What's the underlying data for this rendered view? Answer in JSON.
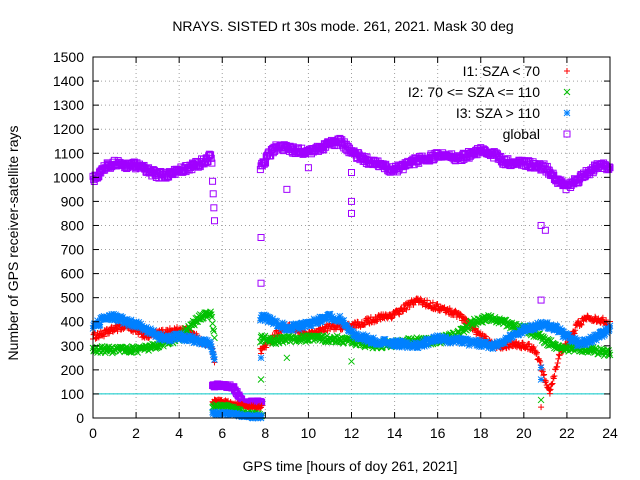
{
  "chart_data": {
    "type": "scatter",
    "title": "NRAYS. SISTED rt 30s mode. 261, 2021. Mask 30 deg",
    "xlabel": "GPS time [hours of doy 261, 2021]",
    "ylabel": "Number of GPS receiver-satellite rays",
    "xlim": [
      0,
      24
    ],
    "ylim": [
      0,
      1500
    ],
    "xticks": [
      0,
      2,
      4,
      6,
      8,
      10,
      12,
      14,
      16,
      18,
      20,
      22,
      24
    ],
    "yticks": [
      0,
      100,
      200,
      300,
      400,
      500,
      600,
      700,
      800,
      900,
      1000,
      1100,
      1200,
      1300,
      1400,
      1500
    ],
    "grid": true,
    "legend_position": "top-right",
    "threshold_line": {
      "y": 100,
      "color": "#00c8c8"
    },
    "series": [
      {
        "name": "I1: SZA < 70",
        "marker": "plus",
        "color": "#ff0000",
        "x": [
          0,
          0.5,
          1,
          1.5,
          2,
          2.5,
          3,
          3.5,
          4,
          4.5,
          5,
          5.5,
          6,
          7.8,
          8.5,
          9,
          10,
          11,
          12,
          13,
          14,
          15,
          16,
          17,
          18,
          18.5,
          19,
          19.5,
          20,
          20.5,
          21.2,
          21.7,
          22,
          22.5,
          23,
          23.5,
          24
        ],
        "values": [
          340,
          350,
          370,
          385,
          360,
          340,
          350,
          360,
          365,
          360,
          320,
          300,
          70,
          280,
          350,
          380,
          345,
          380,
          380,
          410,
          430,
          490,
          460,
          430,
          340,
          310,
          300,
          310,
          300,
          290,
          110,
          280,
          300,
          390,
          420,
          410,
          390
        ]
      },
      {
        "name": "I2: 70 <= SZA <= 110",
        "marker": "cross",
        "color": "#00c000",
        "x": [
          0,
          0.5,
          1,
          1.5,
          2,
          2.5,
          3,
          3.5,
          4,
          4.5,
          5,
          5.5,
          6,
          7.8,
          8.5,
          9,
          10,
          11,
          12,
          13,
          14,
          15,
          16,
          17,
          17.5,
          18,
          18.5,
          19,
          19.5,
          20,
          20.5,
          21,
          21.5,
          22,
          22.5,
          23,
          23.5,
          24
        ],
        "values": [
          280,
          285,
          280,
          285,
          285,
          290,
          300,
          320,
          330,
          380,
          420,
          440,
          50,
          330,
          320,
          330,
          330,
          330,
          320,
          300,
          310,
          320,
          320,
          350,
          390,
          410,
          415,
          400,
          380,
          370,
          350,
          320,
          300,
          290,
          290,
          285,
          275,
          270
        ]
      },
      {
        "name": "I3: SZA > 110",
        "marker": "star",
        "color": "#0080ff",
        "x": [
          0,
          0.5,
          1,
          1.5,
          2,
          2.5,
          3,
          3.5,
          4,
          4.5,
          5,
          5.5,
          6,
          7.8,
          8.5,
          9,
          10,
          10.5,
          11,
          11.5,
          12,
          13,
          14,
          15,
          16,
          17,
          18,
          18.5,
          19,
          19.5,
          20,
          20.5,
          21,
          21.5,
          22,
          22.5,
          23,
          23.5,
          24
        ],
        "values": [
          380,
          410,
          420,
          400,
          390,
          370,
          340,
          330,
          340,
          330,
          320,
          310,
          20,
          420,
          400,
          370,
          390,
          410,
          420,
          410,
          350,
          320,
          310,
          300,
          330,
          320,
          310,
          300,
          310,
          340,
          370,
          380,
          390,
          370,
          340,
          310,
          320,
          340,
          370
        ]
      },
      {
        "name": "global",
        "marker": "square",
        "color": "#a000ff",
        "x": [
          0,
          0.5,
          1,
          1.5,
          2,
          2.5,
          3,
          3.5,
          4,
          4.5,
          5,
          5.5,
          6,
          7.8,
          8.5,
          9,
          10,
          11,
          11.5,
          12,
          13,
          14,
          15,
          16,
          17,
          18,
          18.5,
          19,
          19.5,
          20,
          20.5,
          21,
          21.5,
          22,
          22.5,
          23,
          23.5,
          24
        ],
        "values": [
          990,
          1040,
          1060,
          1050,
          1050,
          1030,
          1010,
          1010,
          1030,
          1040,
          1060,
          1090,
          140,
          1050,
          1130,
          1120,
          1100,
          1140,
          1150,
          1100,
          1060,
          1030,
          1070,
          1090,
          1080,
          1110,
          1100,
          1070,
          1060,
          1060,
          1050,
          1040,
          990,
          960,
          990,
          1020,
          1050,
          1040
        ]
      }
    ],
    "gap_points": [
      {
        "series": "global",
        "x": [
          6,
          6.5,
          7,
          7.5
        ],
        "values": [
          135,
          130,
          60,
          65
        ]
      },
      {
        "series": "I1: SZA < 70",
        "x": [
          6,
          6.5,
          7,
          7.5
        ],
        "values": [
          70,
          60,
          50,
          45
        ]
      },
      {
        "series": "I2: 70 <= SZA <= 110",
        "x": [
          6,
          6.5,
          7,
          7.5
        ],
        "values": [
          50,
          40,
          20,
          15
        ]
      },
      {
        "series": "I3: SZA > 110",
        "x": [
          6,
          6.5,
          7,
          7.5
        ],
        "values": [
          20,
          15,
          10,
          5
        ]
      }
    ],
    "outliers": [
      {
        "series": "global",
        "x": [
          7.8,
          7.8,
          9,
          10,
          12,
          12,
          12,
          20.8,
          21,
          20.8
        ],
        "values": [
          750,
          560,
          950,
          1040,
          1020,
          900,
          850,
          800,
          780,
          490
        ]
      },
      {
        "series": "I2: 70 <= SZA <= 110",
        "x": [
          9,
          12,
          20.8,
          7.8
        ],
        "values": [
          250,
          235,
          75,
          160
        ]
      },
      {
        "series": "I3: SZA > 110",
        "x": [
          20.8,
          20.8,
          7.8
        ],
        "values": [
          210,
          160,
          250
        ]
      },
      {
        "series": "I1: SZA < 70",
        "x": [
          20.8,
          21.2
        ],
        "values": [
          45,
          115
        ]
      }
    ]
  }
}
